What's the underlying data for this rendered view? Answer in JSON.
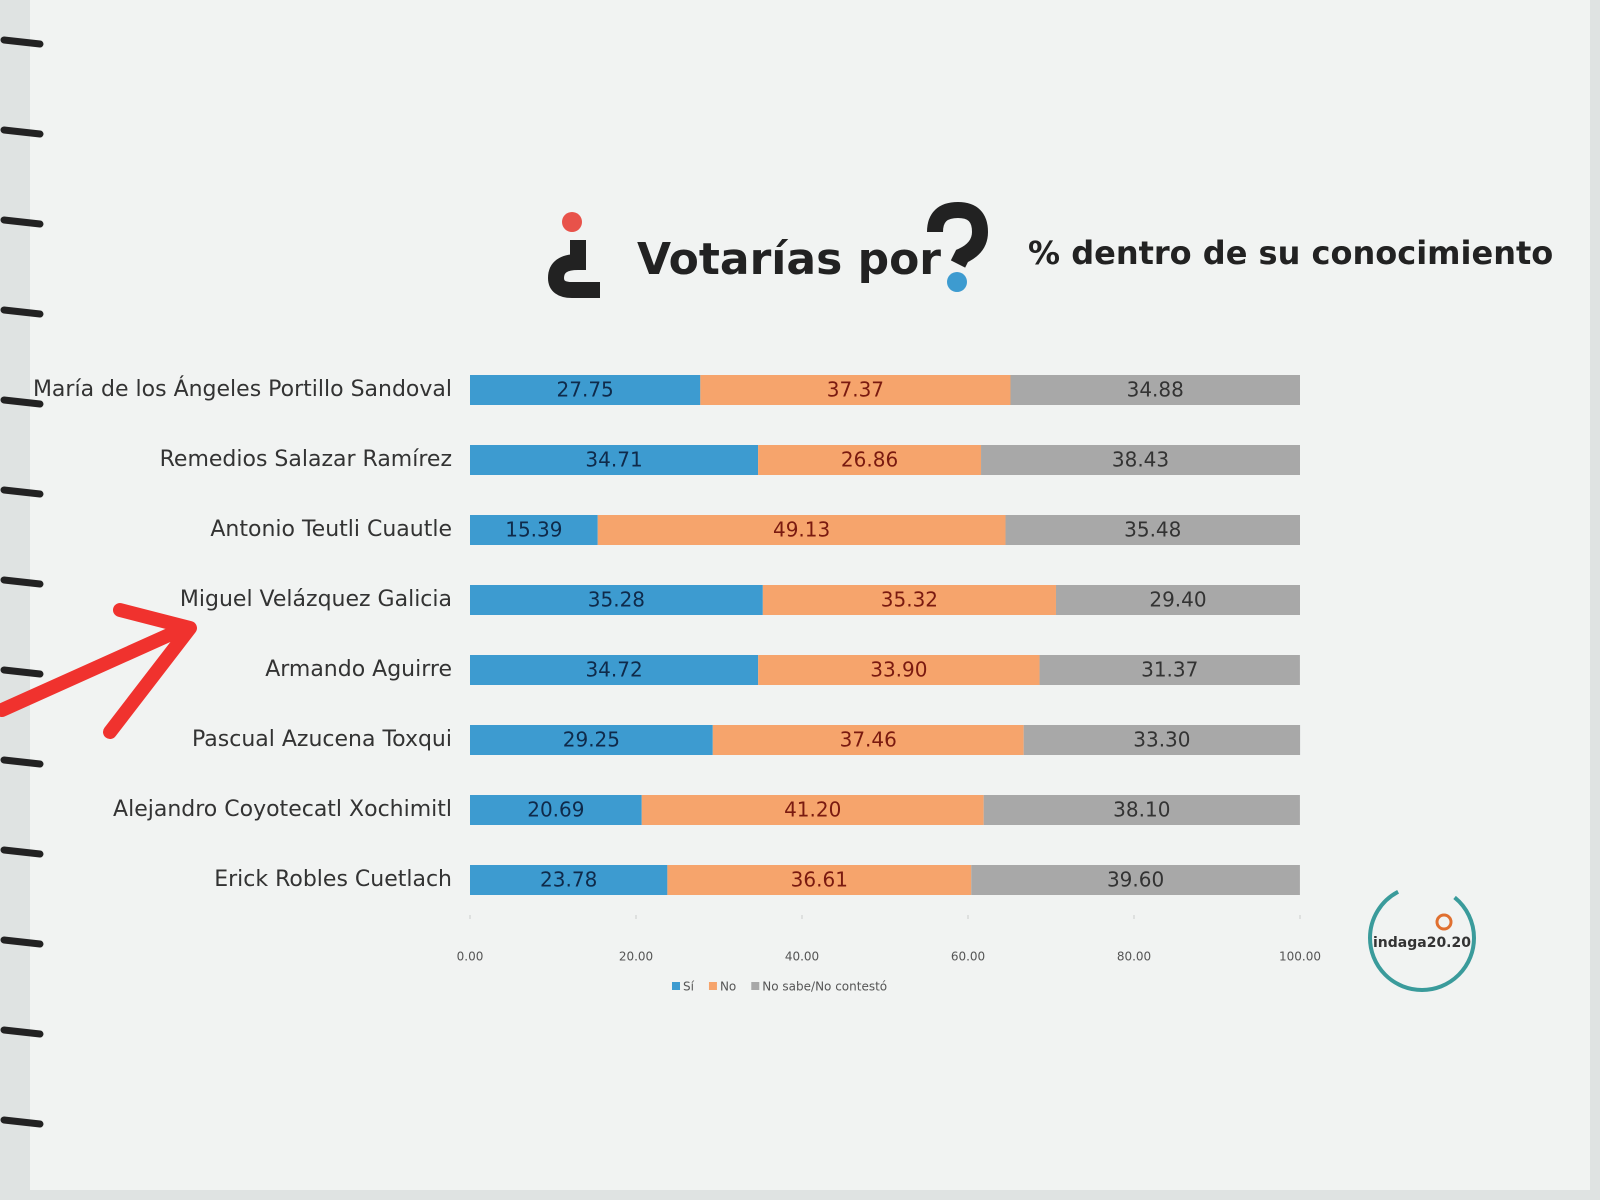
{
  "chart_data": {
    "type": "stacked-bar-horizontal",
    "title": "Votarías por",
    "subtitle": "% dentro de su conocimiento",
    "logo": "indaga20.20",
    "categories": [
      "María de los Ángeles Portillo Sandoval",
      "Remedios Salazar Ramírez",
      "Antonio Teutli Cuautle",
      "Miguel Velázquez Galicia",
      "Armando Aguirre",
      "Pascual Azucena Toxqui",
      "Alejandro Coyotecatl Xochimitl",
      "Erick Robles Cuetlach"
    ],
    "series": [
      {
        "name": "Sí",
        "color": "#3d9bd0",
        "values": [
          27.75,
          34.71,
          15.39,
          35.28,
          34.72,
          29.25,
          20.69,
          23.78
        ],
        "value_labels": [
          "27.75",
          "34.71",
          "15.39",
          "35.28",
          "34.72",
          "29.25",
          "20.69",
          "23.78"
        ]
      },
      {
        "name": "No",
        "color": "#f6a46c",
        "values": [
          37.37,
          26.86,
          49.13,
          35.32,
          33.9,
          37.46,
          41.2,
          36.61
        ],
        "value_labels": [
          "37.37",
          "26.86",
          "49.13",
          "35.32",
          "33.90",
          "37.46",
          "41.20",
          "36.61"
        ]
      },
      {
        "name": "No sabe/No contestó",
        "color": "#a8a8a8",
        "values": [
          34.88,
          38.43,
          35.48,
          29.4,
          31.37,
          33.3,
          38.1,
          39.6
        ],
        "value_labels": [
          "34.88",
          "38.43",
          "35.48",
          "29.40",
          "31.37",
          "33.30",
          "38.10",
          "39.60"
        ]
      }
    ],
    "xlim": [
      0,
      100
    ],
    "xticks": [
      {
        "value": 0,
        "label": "0.00"
      },
      {
        "value": 20,
        "label": "20.00"
      },
      {
        "value": 40,
        "label": "40.00"
      },
      {
        "value": 60,
        "label": "60.00"
      },
      {
        "value": 80,
        "label": "80.00"
      },
      {
        "value": 100,
        "label": "100.00"
      }
    ],
    "legend": "bottom"
  }
}
